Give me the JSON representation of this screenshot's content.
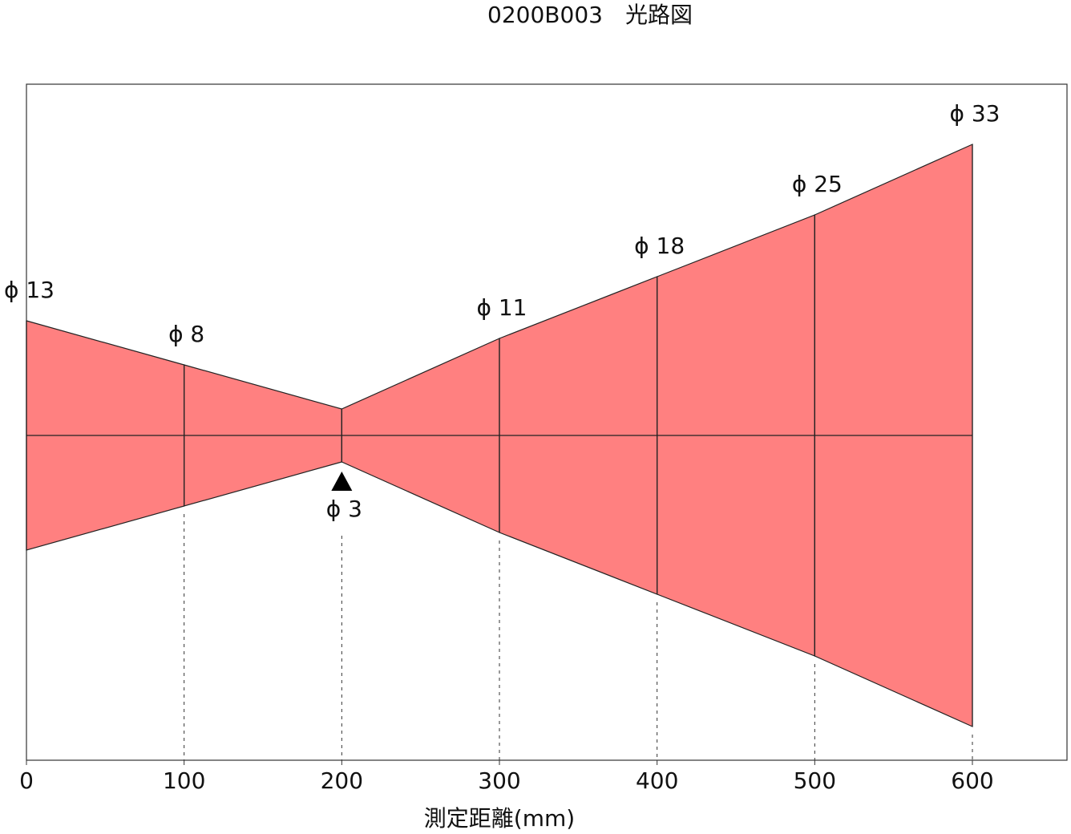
{
  "chart_data": {
    "type": "beam",
    "title": "0200B003　光路図",
    "x_label": "測定距離(mm)",
    "x": [
      0,
      100,
      200,
      300,
      400,
      500,
      600
    ],
    "values": [
      13,
      8,
      3,
      11,
      18,
      25,
      33
    ],
    "value_labels": [
      "ϕ 13",
      "ϕ 8",
      "ϕ 3",
      "ϕ 11",
      "ϕ 18",
      "ϕ 25",
      "ϕ 33"
    ],
    "color": "#ff8080",
    "xlim": [
      0,
      660
    ],
    "xticks": [
      0,
      100,
      200,
      300,
      400,
      500,
      600
    ]
  }
}
